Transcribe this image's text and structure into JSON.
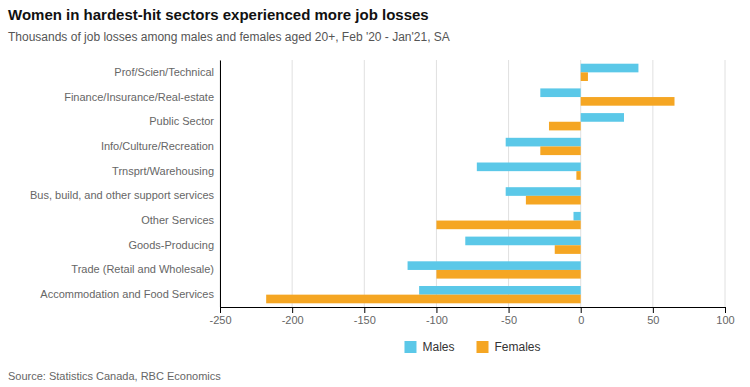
{
  "chart_data": {
    "type": "bar",
    "orientation": "horizontal",
    "title": "Women in hardest-hit sectors experienced more job losses",
    "subtitle": "Thousands of job losses among males and females aged 20+, Feb '20 - Jan'21, SA",
    "source": "Source: Statistics Canada, RBC Economics",
    "categories": [
      "Prof/Scien/Technical",
      "Finance/Insurance/Real-estate",
      "Public Sector",
      "Info/Culture/Recreation",
      "Trnsprt/Warehousing",
      "Bus, build, and other support services",
      "Other Services",
      "Goods-Producing",
      "Trade (Retail and Wholesale)",
      "Accommodation and Food Services"
    ],
    "series": [
      {
        "name": "Males",
        "color": "#5BC8E8",
        "values": [
          40,
          -28,
          30,
          -52,
          -72,
          -52,
          -5,
          -80,
          -120,
          -112
        ]
      },
      {
        "name": "Females",
        "color": "#F5A623",
        "values": [
          5,
          65,
          -22,
          -28,
          -3,
          -38,
          -100,
          -18,
          -100,
          -218
        ]
      }
    ],
    "xlim": [
      -250,
      100
    ],
    "xticks": [
      -250,
      -200,
      -150,
      -100,
      -50,
      0,
      50,
      100
    ],
    "grid": true,
    "legend": "bottom"
  }
}
